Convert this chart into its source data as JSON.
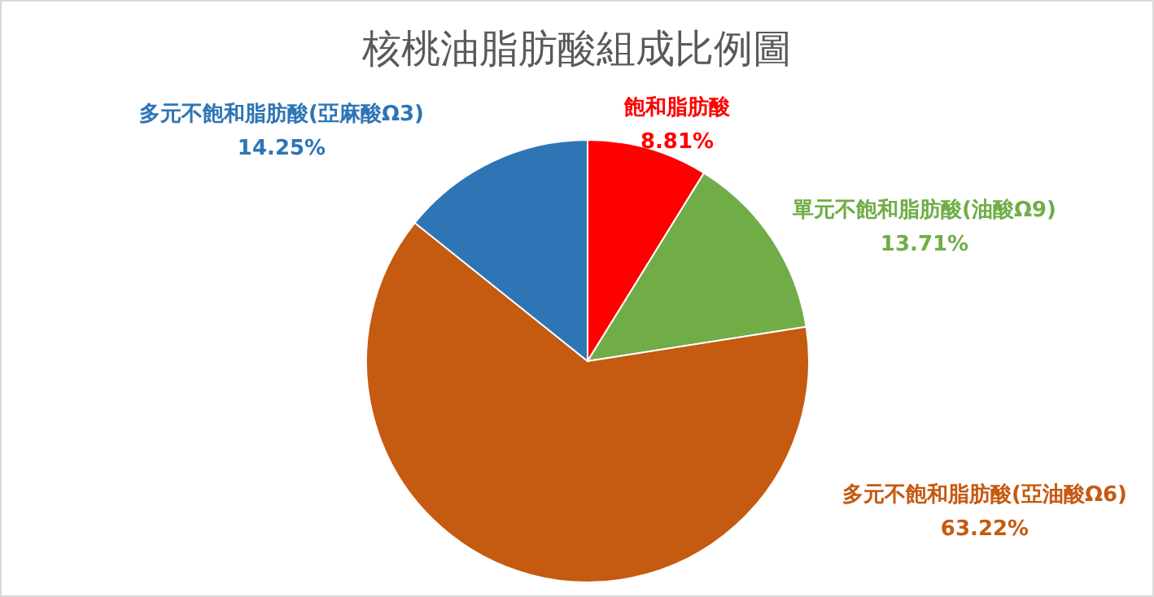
{
  "chart_data": {
    "type": "pie",
    "title": "核桃油脂肪酸組成比例圖",
    "categories": [
      "飽和脂肪酸",
      "單元不飽和脂肪酸(油酸Ω9)",
      "多元不飽和脂肪酸(亞油酸Ω6)",
      "多元不飽和脂肪酸(亞麻酸Ω3)"
    ],
    "values": [
      8.81,
      13.71,
      63.22,
      14.25
    ],
    "colors": [
      "#ff0000",
      "#70ad47",
      "#c55a11",
      "#2e75b6"
    ],
    "value_labels": [
      "8.81%",
      "13.71%",
      "63.22%",
      "14.25%"
    ],
    "legend": false
  }
}
